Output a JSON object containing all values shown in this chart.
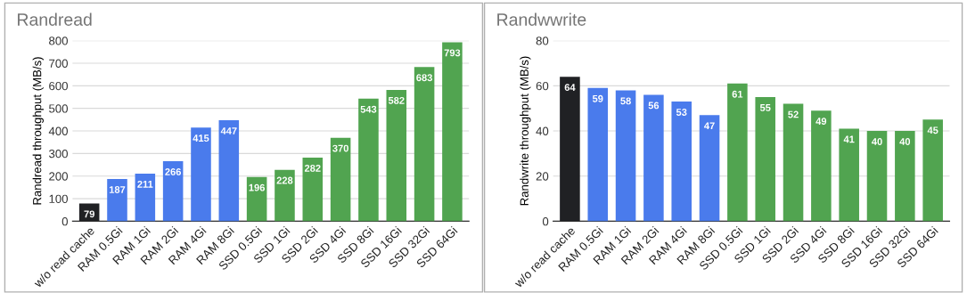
{
  "chart_data": [
    {
      "type": "bar",
      "title": "Randread",
      "ylabel": "Randread throughput (MB/s)",
      "categories": [
        "w/o read cache",
        "RAM 0.5Gi",
        "RAM 1Gi",
        "RAM 2Gi",
        "RAM 4Gi",
        "RAM 8Gi",
        "SSD 0.5Gi",
        "SSD 1Gi",
        "SSD 2Gi",
        "SSD 4Gi",
        "SSD 8Gi",
        "SSD 16Gi",
        "SSD 32Gi",
        "SSD 64Gi"
      ],
      "values": [
        79,
        187,
        211,
        266,
        415,
        447,
        196,
        228,
        282,
        370,
        543,
        582,
        683,
        793
      ],
      "colors": [
        "#202124",
        "#4a7bec",
        "#4a7bec",
        "#4a7bec",
        "#4a7bec",
        "#4a7bec",
        "#51a450",
        "#51a450",
        "#51a450",
        "#51a450",
        "#51a450",
        "#51a450",
        "#51a450",
        "#51a450"
      ],
      "ylim": [
        0,
        800
      ],
      "yticks": [
        0,
        100,
        200,
        300,
        400,
        500,
        600,
        700,
        800
      ],
      "grid": "y",
      "data_labels": true
    },
    {
      "type": "bar",
      "title": "Randwwrite",
      "ylabel": "Randwrite throughput (MB/s)",
      "categories": [
        "w/o read cache",
        "RAM 0.5Gi",
        "RAM 1Gi",
        "RAM 2Gi",
        "RAM 4Gi",
        "RAM 8Gi",
        "SSD 0.5Gi",
        "SSD 1Gi",
        "SSD 2Gi",
        "SSD 4Gi",
        "SSD 8Gi",
        "SSD 16Gi",
        "SSD 32Gi",
        "SSD 64Gi"
      ],
      "values": [
        64,
        59,
        58,
        56,
        53,
        47,
        61,
        55,
        52,
        49,
        41,
        40,
        40,
        45
      ],
      "colors": [
        "#202124",
        "#4a7bec",
        "#4a7bec",
        "#4a7bec",
        "#4a7bec",
        "#4a7bec",
        "#51a450",
        "#51a450",
        "#51a450",
        "#51a450",
        "#51a450",
        "#51a450",
        "#51a450",
        "#51a450"
      ],
      "ylim": [
        0,
        80
      ],
      "yticks": [
        0,
        20,
        40,
        60,
        80
      ],
      "grid": "y",
      "data_labels": true
    }
  ]
}
